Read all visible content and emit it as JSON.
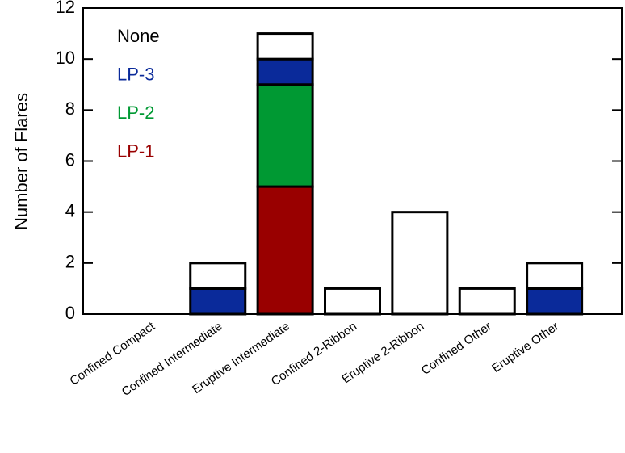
{
  "chart_data": {
    "type": "stacked-bar",
    "y_label": "Number of Flares",
    "categories": [
      "Confined Compact",
      "Confined Intermediate",
      "Eruptive Intermediate",
      "Confined 2-Ribbon",
      "Eruptive 2-Ribbon",
      "Confined Other",
      "Eruptive Other"
    ],
    "series": [
      {
        "name": "LP-1",
        "color": "#990000",
        "values": [
          0,
          0,
          5,
          0,
          0,
          0,
          0
        ]
      },
      {
        "name": "LP-2",
        "color": "#009933",
        "values": [
          0,
          0,
          4,
          0,
          0,
          0,
          0
        ]
      },
      {
        "name": "LP-3",
        "color": "#0a2a9a",
        "values": [
          0,
          1,
          1,
          0,
          0,
          0,
          1
        ]
      },
      {
        "name": "None",
        "color": "#000000",
        "values": [
          0,
          1,
          1,
          1,
          4,
          1,
          1
        ]
      }
    ],
    "ylim": [
      0,
      12
    ],
    "yticks": [
      0,
      2,
      4,
      6,
      8,
      10,
      12
    ]
  }
}
